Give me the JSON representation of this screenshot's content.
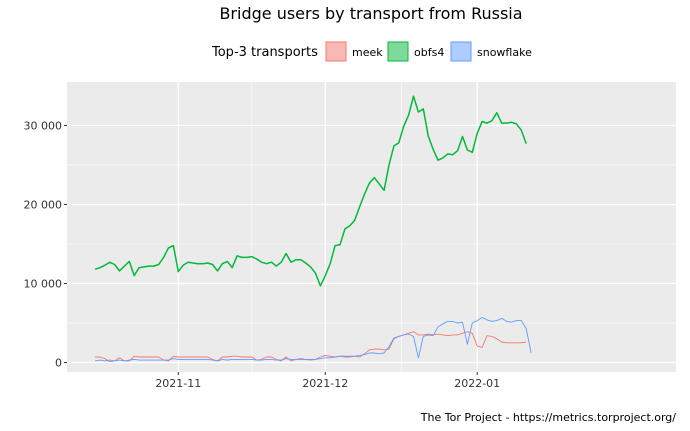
{
  "chart_data": {
    "type": "line",
    "title": "Bridge users by transport from Russia",
    "legend": {
      "title": "Top-3 transports",
      "placement": "top",
      "entries": [
        {
          "name": "meek",
          "color": "#f8766d",
          "fill": "#f8b9b4"
        },
        {
          "name": "obfs4",
          "color": "#00ba38",
          "fill": "#7fd99b"
        },
        {
          "name": "snowflake",
          "color": "#619cff",
          "fill": "#afcbff"
        }
      ]
    },
    "caption": "The Tor Project - https://metrics.torproject.org/",
    "x_start": "2021-10-15",
    "ylim": [
      -1200,
      35500
    ],
    "y_ticks": [
      {
        "value": 0,
        "label": "0"
      },
      {
        "value": 10000,
        "label": "10 000"
      },
      {
        "value": 20000,
        "label": "20 000"
      },
      {
        "value": 30000,
        "label": "30 000"
      }
    ],
    "x_ticks": [
      {
        "date": "2021-11-01",
        "label": "2021-11"
      },
      {
        "date": "2021-12-01",
        "label": "2021-12"
      },
      {
        "date": "2022-01-01",
        "label": "2022-01"
      }
    ],
    "grid": true,
    "series": [
      {
        "name": "obfs4",
        "color": "#00ba38",
        "values": [
          11800,
          12000,
          12300,
          12700,
          12400,
          11600,
          12200,
          12800,
          11000,
          12000,
          12100,
          12200,
          12200,
          12400,
          13300,
          14500,
          14800,
          11500,
          12300,
          12700,
          12600,
          12500,
          12500,
          12600,
          12400,
          11600,
          12500,
          12800,
          12000,
          13500,
          13300,
          13300,
          13400,
          13100,
          12700,
          12500,
          12700,
          12200,
          12700,
          13800,
          12700,
          13000,
          13000,
          12600,
          12100,
          11300,
          9700,
          11000,
          12500,
          14800,
          14900,
          16900,
          17300,
          18000,
          19700,
          21300,
          22700,
          23400,
          22600,
          21800,
          25000,
          27400,
          27800,
          29900,
          31300,
          33700,
          31700,
          32100,
          28700,
          27000,
          25600,
          25900,
          26400,
          26300,
          26800,
          28600,
          26900,
          26600,
          29000,
          30500,
          30300,
          30600,
          31600,
          30300,
          30300,
          30400,
          30200,
          29400,
          27700
        ]
      },
      {
        "name": "meek",
        "color": "#f8766d",
        "values": [
          700,
          700,
          500,
          100,
          200,
          600,
          200,
          200,
          800,
          700,
          700,
          700,
          700,
          700,
          300,
          200,
          800,
          700,
          700,
          700,
          700,
          700,
          700,
          700,
          400,
          200,
          700,
          700,
          800,
          800,
          700,
          700,
          700,
          300,
          400,
          700,
          700,
          400,
          200,
          700,
          200,
          400,
          500,
          400,
          300,
          400,
          700,
          900,
          800,
          700,
          800,
          700,
          700,
          800,
          700,
          1100,
          1600,
          1700,
          1700,
          1600,
          1700,
          3000,
          3300,
          3500,
          3700,
          3900,
          3500,
          3500,
          3600,
          3500,
          3600,
          3500,
          3400,
          3500,
          3500,
          3700,
          3900,
          3700,
          2100,
          1900,
          3400,
          3300,
          3000,
          2600,
          2500,
          2500,
          2500,
          2500,
          2600
        ]
      },
      {
        "name": "snowflake",
        "color": "#619cff",
        "values": [
          200,
          300,
          200,
          300,
          200,
          300,
          200,
          300,
          400,
          300,
          300,
          300,
          300,
          300,
          300,
          300,
          500,
          400,
          400,
          400,
          400,
          400,
          400,
          400,
          300,
          200,
          400,
          300,
          400,
          400,
          400,
          400,
          400,
          300,
          300,
          400,
          400,
          300,
          300,
          500,
          400,
          400,
          400,
          400,
          400,
          400,
          500,
          600,
          600,
          700,
          800,
          800,
          800,
          800,
          900,
          1000,
          1200,
          1200,
          1100,
          1200,
          2000,
          3100,
          3300,
          3500,
          3600,
          3300,
          600,
          3300,
          3500,
          3400,
          4500,
          4900,
          5200,
          5200,
          5000,
          5100,
          2300,
          5000,
          5300,
          5700,
          5400,
          5200,
          5300,
          5600,
          5200,
          5100,
          5300,
          5300,
          4300,
          1200
        ]
      }
    ]
  }
}
